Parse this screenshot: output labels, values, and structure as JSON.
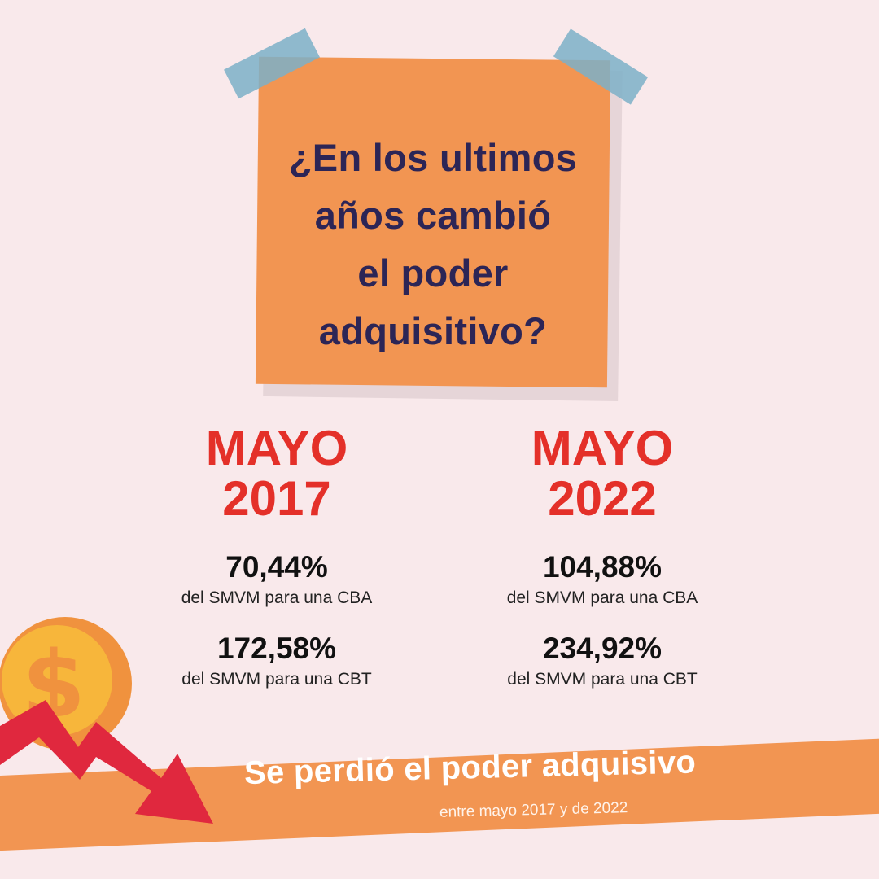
{
  "question": "¿En los ultimos\naños cambió\nel poder\nadquisitivo?",
  "columns": [
    {
      "period": "MAYO\n2017",
      "stats": [
        {
          "value": "70,44%",
          "caption": "del SMVM para una CBA"
        },
        {
          "value": "172,58%",
          "caption": "del SMVM para una CBT"
        }
      ]
    },
    {
      "period": "MAYO\n2022",
      "stats": [
        {
          "value": "104,88%",
          "caption": "del SMVM para una CBA"
        },
        {
          "value": "234,92%",
          "caption": "del SMVM para una CBT"
        }
      ]
    }
  ],
  "banner": {
    "title": "Se perdió el poder adquisivo",
    "subtitle": "entre mayo 2017 y de 2022"
  },
  "icons": {
    "coin": "dollar-coin-icon",
    "arrow": "down-trend-arrow-icon"
  },
  "colors": {
    "background": "#f9e9eb",
    "note": "#f29552",
    "tape": "#7db0c8",
    "question_text": "#2c2556",
    "period_red": "#e43029",
    "coin": "#f7b63b",
    "coin_ring": "#f0923e",
    "arrow": "#e0283e"
  }
}
